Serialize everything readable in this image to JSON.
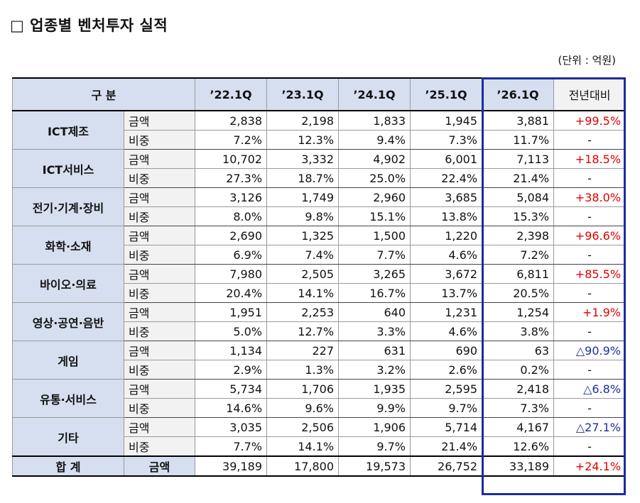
{
  "title": "□  업종별 벤처투자 실적",
  "unit": "(단위 : 억원)",
  "header": {
    "category": "구   분",
    "q1": "’22.1Q",
    "q2": "’23.1Q",
    "q3": "’24.1Q",
    "q4": "’25.1Q",
    "q5": "’26.1Q",
    "yoy": "전년대비"
  },
  "labels": {
    "amount": "금액",
    "share": "비중"
  },
  "rows": [
    {
      "name": "ICT제조",
      "amount": [
        "2,838",
        "2,198",
        "1,833",
        "1,945",
        "3,881"
      ],
      "yoy": "+99.5%",
      "share": [
        "7.2%",
        "12.3%",
        "9.4%",
        "7.3%",
        "11.7%"
      ],
      "share_yoy": "-"
    },
    {
      "name": "ICT서비스",
      "amount": [
        "10,702",
        "3,332",
        "4,902",
        "6,001",
        "7,113"
      ],
      "yoy": "+18.5%",
      "share": [
        "27.3%",
        "18.7%",
        "25.0%",
        "22.4%",
        "21.4%"
      ],
      "share_yoy": "-"
    },
    {
      "name": "전기·기계·장비",
      "amount": [
        "3,126",
        "1,749",
        "2,960",
        "3,685",
        "5,084"
      ],
      "yoy": "+38.0%",
      "share": [
        "8.0%",
        "9.8%",
        "15.1%",
        "13.8%",
        "15.3%"
      ],
      "share_yoy": "-"
    },
    {
      "name": "화학·소재",
      "amount": [
        "2,690",
        "1,325",
        "1,500",
        "1,220",
        "2,398"
      ],
      "yoy": "+96.6%",
      "share": [
        "6.9%",
        "7.4%",
        "7.7%",
        "4.6%",
        "7.2%"
      ],
      "share_yoy": "-"
    },
    {
      "name": "바이오·의료",
      "amount": [
        "7,980",
        "2,505",
        "3,265",
        "3,672",
        "6,811"
      ],
      "yoy": "+85.5%",
      "share": [
        "20.4%",
        "14.1%",
        "16.7%",
        "13.7%",
        "20.5%"
      ],
      "share_yoy": "-"
    },
    {
      "name": "영상·공연·음반",
      "amount": [
        "1,951",
        "2,253",
        "640",
        "1,231",
        "1,254"
      ],
      "yoy": "+1.9%",
      "share": [
        "5.0%",
        "12.7%",
        "3.3%",
        "4.6%",
        "3.8%"
      ],
      "share_yoy": "-"
    },
    {
      "name": "게임",
      "amount": [
        "1,134",
        "227",
        "631",
        "690",
        "63"
      ],
      "yoy": "△90.9%",
      "share": [
        "2.9%",
        "1.3%",
        "3.2%",
        "2.6%",
        "0.2%"
      ],
      "share_yoy": "-"
    },
    {
      "name": "유통·서비스",
      "amount": [
        "5,734",
        "1,706",
        "1,935",
        "2,595",
        "2,418"
      ],
      "yoy": "△6.8%",
      "share": [
        "14.6%",
        "9.6%",
        "9.9%",
        "9.7%",
        "7.3%"
      ],
      "share_yoy": "-"
    },
    {
      "name": "기타",
      "amount": [
        "3,035",
        "2,506",
        "1,906",
        "5,714",
        "4,167"
      ],
      "yoy": "△27.1%",
      "share": [
        "7.7%",
        "14.1%",
        "9.7%",
        "21.4%",
        "12.6%"
      ],
      "share_yoy": "-"
    }
  ],
  "total": {
    "name": "합   계",
    "label": "금액",
    "amount": [
      "39,189",
      "17,800",
      "19,573",
      "26,752",
      "33,189"
    ],
    "yoy": "+24.1%"
  },
  "colors": {
    "header_bg": "#d6dff0",
    "sub_bg": "#f2f2f2",
    "increase": "#e00000",
    "decrease": "#1f2f9f",
    "highlight_border": "#1c2d9c"
  }
}
